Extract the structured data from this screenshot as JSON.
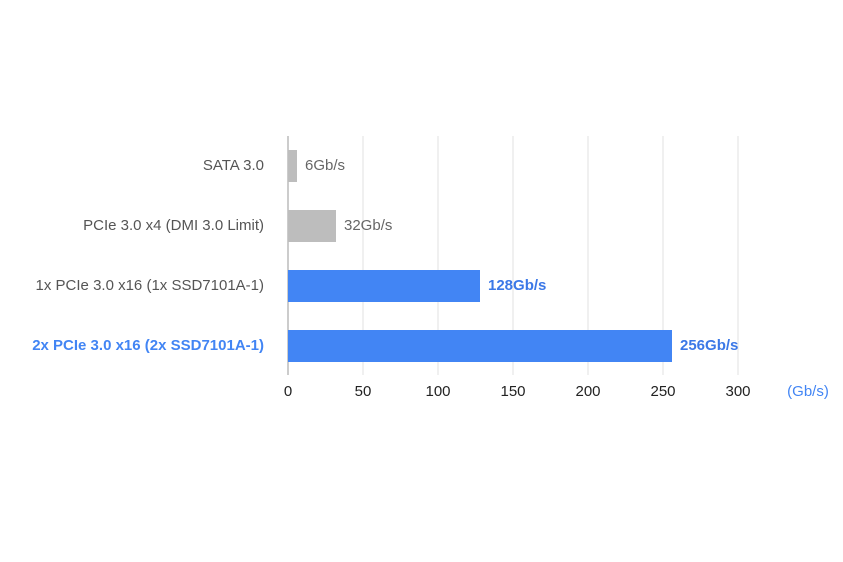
{
  "chart_data": {
    "type": "bar",
    "orientation": "horizontal",
    "categories": [
      "SATA 3.0",
      "PCIe 3.0 x4 (DMI 3.0 Limit)",
      "1x PCIe 3.0 x16 (1x SSD7101A-1)",
      "2x PCIe 3.0 x16 (2x SSD7101A-1)"
    ],
    "values": [
      6,
      32,
      128,
      256
    ],
    "value_labels": [
      "6Gb/s",
      "32Gb/s",
      "128Gb/s",
      "256Gb/s"
    ],
    "colors": [
      "#bdbdbd",
      "#bdbdbd",
      "#4285f4",
      "#4285f4"
    ],
    "value_label_colors": [
      "#666666",
      "#666666",
      "#3b78e7",
      "#3b78e7"
    ],
    "value_label_bold": [
      false,
      false,
      true,
      true
    ],
    "category_label_colors": [
      "#555555",
      "#555555",
      "#555555",
      "#4285f4"
    ],
    "category_label_bold": [
      false,
      false,
      false,
      true
    ],
    "xlim": [
      0,
      300
    ],
    "xticks": [
      0,
      50,
      100,
      150,
      200,
      250,
      300
    ],
    "xlabel": "(Gb/s)",
    "xlabel_color": "#4285f4",
    "grid": true
  }
}
